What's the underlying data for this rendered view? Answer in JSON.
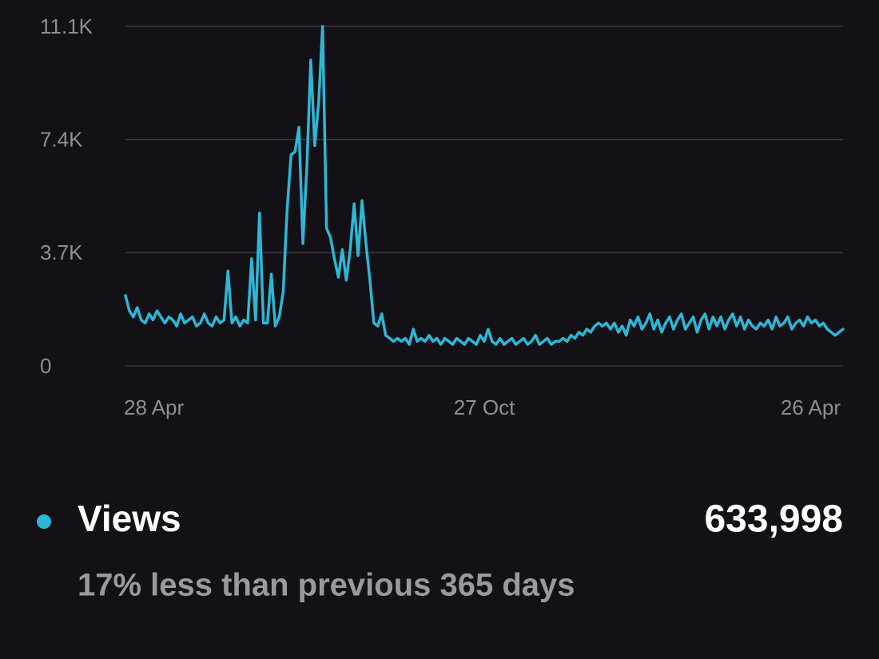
{
  "chart_data": {
    "type": "line",
    "categories": [
      "28 Apr",
      null,
      null,
      null,
      null,
      null,
      null,
      null,
      null,
      null,
      null,
      null,
      null,
      null,
      null,
      null,
      null,
      null,
      null,
      null,
      null,
      null,
      null,
      null,
      null,
      null,
      null,
      null,
      null,
      null,
      null,
      null,
      null,
      null,
      null,
      null,
      null,
      null,
      null,
      null,
      null,
      null,
      null,
      null,
      null,
      null,
      null,
      null,
      null,
      null,
      null,
      null,
      null,
      null,
      null,
      null,
      null,
      null,
      null,
      null,
      null,
      null,
      null,
      null,
      null,
      null,
      null,
      null,
      null,
      null,
      null,
      null,
      null,
      null,
      null,
      null,
      null,
      null,
      null,
      null,
      null,
      null,
      null,
      null,
      null,
      null,
      null,
      null,
      null,
      null,
      null,
      "27 Oct",
      null,
      null,
      null,
      null,
      null,
      null,
      null,
      null,
      null,
      null,
      null,
      null,
      null,
      null,
      null,
      null,
      null,
      null,
      null,
      null,
      null,
      null,
      null,
      null,
      null,
      null,
      null,
      null,
      null,
      null,
      null,
      null,
      null,
      null,
      null,
      null,
      null,
      null,
      null,
      null,
      null,
      null,
      null,
      null,
      null,
      null,
      null,
      null,
      null,
      null,
      null,
      null,
      null,
      null,
      null,
      null,
      null,
      null,
      null,
      null,
      null,
      null,
      null,
      null,
      null,
      null,
      null,
      null,
      null,
      null,
      null,
      null,
      null,
      null,
      null,
      null,
      null,
      null,
      null,
      null,
      null,
      null,
      null,
      null,
      null,
      null,
      null,
      null,
      null,
      null,
      "26 Apr"
    ],
    "series": [
      {
        "name": "Views",
        "color": "#2db7d6",
        "values": [
          2300,
          1800,
          1600,
          1900,
          1500,
          1400,
          1700,
          1500,
          1800,
          1600,
          1400,
          1600,
          1500,
          1300,
          1700,
          1400,
          1500,
          1600,
          1300,
          1400,
          1700,
          1400,
          1300,
          1600,
          1400,
          1500,
          3100,
          1400,
          1600,
          1300,
          1500,
          1400,
          3500,
          1500,
          5000,
          1400,
          1400,
          3000,
          1300,
          1600,
          2400,
          5100,
          6900,
          7000,
          7800,
          4000,
          6500,
          10000,
          7200,
          8600,
          11100,
          4500,
          4200,
          3500,
          2900,
          3800,
          2800,
          3800,
          5300,
          3600,
          5400,
          4000,
          2800,
          1400,
          1300,
          1700,
          1000,
          900,
          800,
          900,
          800,
          900,
          700,
          1200,
          800,
          900,
          800,
          1000,
          800,
          900,
          700,
          900,
          800,
          700,
          900,
          800,
          700,
          900,
          800,
          700,
          1000,
          800,
          1200,
          800,
          700,
          900,
          700,
          800,
          900,
          700,
          800,
          900,
          700,
          800,
          1000,
          700,
          800,
          900,
          700,
          800,
          800,
          900,
          800,
          1000,
          900,
          1100,
          1000,
          1200,
          1100,
          1300,
          1400,
          1300,
          1400,
          1200,
          1400,
          1100,
          1300,
          1000,
          1500,
          1300,
          1600,
          1200,
          1400,
          1700,
          1200,
          1500,
          1100,
          1400,
          1600,
          1200,
          1500,
          1700,
          1200,
          1400,
          1600,
          1100,
          1500,
          1700,
          1200,
          1600,
          1300,
          1600,
          1200,
          1500,
          1700,
          1300,
          1600,
          1200,
          1500,
          1300,
          1200,
          1400,
          1300,
          1500,
          1200,
          1600,
          1300,
          1400,
          1600,
          1200,
          1400,
          1500,
          1300,
          1600,
          1400,
          1500,
          1300,
          1400,
          1200,
          1100,
          1000,
          1100,
          1200
        ]
      }
    ],
    "ylim": [
      0,
      11100
    ],
    "yticks": [
      0,
      {
        "value": 3700,
        "label": "3.7K"
      },
      {
        "value": 7400,
        "label": "7.4K"
      },
      {
        "value": 11100,
        "label": "11.1K"
      }
    ],
    "grid": true,
    "total": "633,998",
    "comparison": "17% less than previous 365 days"
  }
}
